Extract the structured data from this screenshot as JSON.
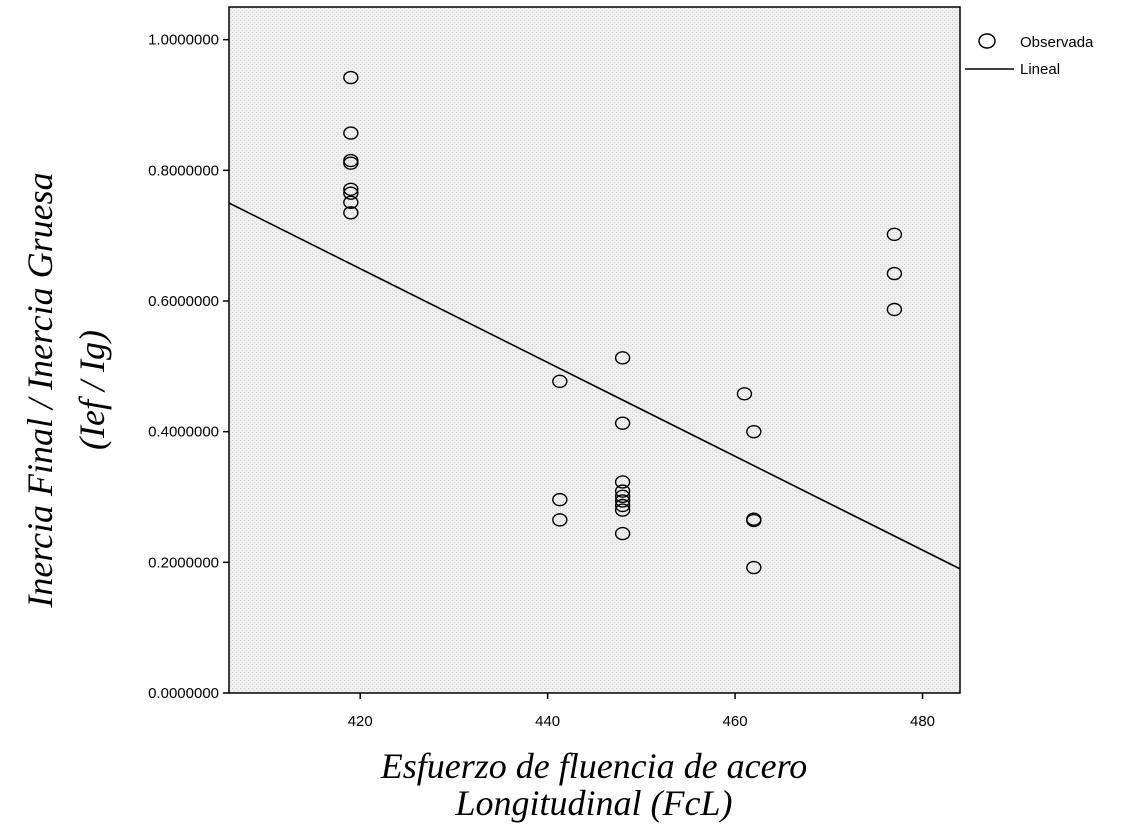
{
  "chart_data": {
    "type": "scatter",
    "xlabel_lines": [
      "Esfuerzo de fluencia de acero",
      "Longitudinal (FcL)"
    ],
    "ylabel_lines": [
      "Inercia Final / Inercia Gruesa",
      "(Ief / Ig)"
    ],
    "xlim": [
      406,
      484
    ],
    "ylim": [
      0,
      1.05
    ],
    "x_ticks": [
      420,
      440,
      460,
      480
    ],
    "x_tick_labels": [
      "420",
      "440",
      "460",
      "480"
    ],
    "y_ticks": [
      0,
      0.2,
      0.4,
      0.6,
      0.8,
      1.0
    ],
    "y_tick_labels": [
      "0.0000000",
      "0.2000000",
      "0.4000000",
      "0.6000000",
      "0.8000000",
      "1.0000000"
    ],
    "legend_position": "right",
    "series": [
      {
        "name": "Observada",
        "kind": "points",
        "points": [
          [
            419,
            0.942
          ],
          [
            419,
            0.857
          ],
          [
            419,
            0.815
          ],
          [
            419,
            0.811
          ],
          [
            419,
            0.771
          ],
          [
            419,
            0.765
          ],
          [
            419,
            0.751
          ],
          [
            419,
            0.735
          ],
          [
            441.3,
            0.477
          ],
          [
            441.3,
            0.296
          ],
          [
            441.3,
            0.265
          ],
          [
            448,
            0.513
          ],
          [
            448,
            0.413
          ],
          [
            448,
            0.323
          ],
          [
            448,
            0.309
          ],
          [
            448,
            0.301
          ],
          [
            448,
            0.294
          ],
          [
            448,
            0.287
          ],
          [
            448,
            0.28
          ],
          [
            448,
            0.244
          ],
          [
            461,
            0.458
          ],
          [
            462,
            0.4
          ],
          [
            462,
            0.266
          ],
          [
            462,
            0.264
          ],
          [
            462,
            0.192
          ],
          [
            477,
            0.702
          ],
          [
            477,
            0.642
          ],
          [
            477,
            0.587
          ]
        ]
      },
      {
        "name": "Lineal",
        "kind": "line",
        "points": [
          [
            406,
            0.75
          ],
          [
            484,
            0.19
          ]
        ]
      }
    ]
  }
}
